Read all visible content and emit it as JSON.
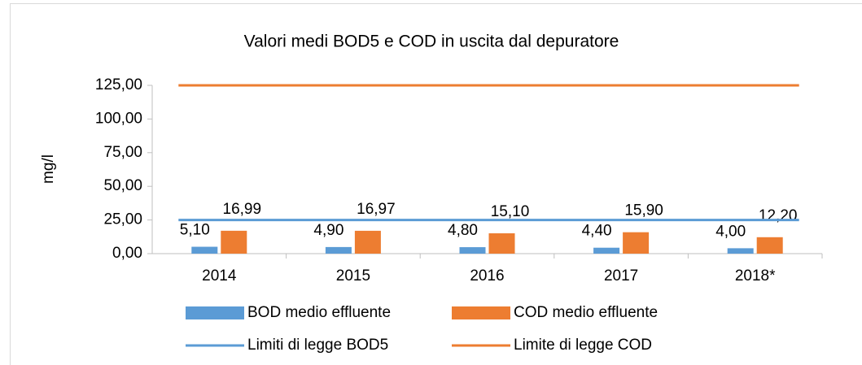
{
  "chart_data": {
    "type": "bar",
    "title": "Valori medi BOD5 e COD in uscita dal depuratore",
    "y_label": "mg/l",
    "categories": [
      "2014",
      "2015",
      "2016",
      "2017",
      "2018*"
    ],
    "series": [
      {
        "name": "BOD medio effluente",
        "color": "#5b9bd5",
        "type": "bar",
        "values": [
          5.1,
          4.9,
          4.8,
          4.4,
          4.0
        ],
        "value_labels": [
          "5,10",
          "4,90",
          "4,80",
          "4,40",
          "4,00"
        ]
      },
      {
        "name": "COD medio effluente",
        "color": "#ed7d31",
        "type": "bar",
        "values": [
          16.99,
          16.97,
          15.1,
          15.9,
          12.2
        ],
        "value_labels": [
          "16,99",
          "16,97",
          "15,10",
          "15,90",
          "12,20"
        ]
      },
      {
        "name": "Limiti di legge BOD5",
        "color": "#5b9bd5",
        "type": "line",
        "values": [
          25,
          25,
          25,
          25,
          25
        ]
      },
      {
        "name": "Limite di legge COD",
        "color": "#ed7d31",
        "type": "line",
        "values": [
          125,
          125,
          125,
          125,
          125
        ]
      }
    ],
    "ylim": [
      0,
      125
    ],
    "yticks": [
      {
        "value": 0,
        "label": "0,00"
      },
      {
        "value": 25,
        "label": "25,00"
      },
      {
        "value": 50,
        "label": "50,00"
      },
      {
        "value": 75,
        "label": "75,00"
      },
      {
        "value": 100,
        "label": "100,00"
      },
      {
        "value": 125,
        "label": "125,00"
      }
    ],
    "legend": "bottom"
  }
}
